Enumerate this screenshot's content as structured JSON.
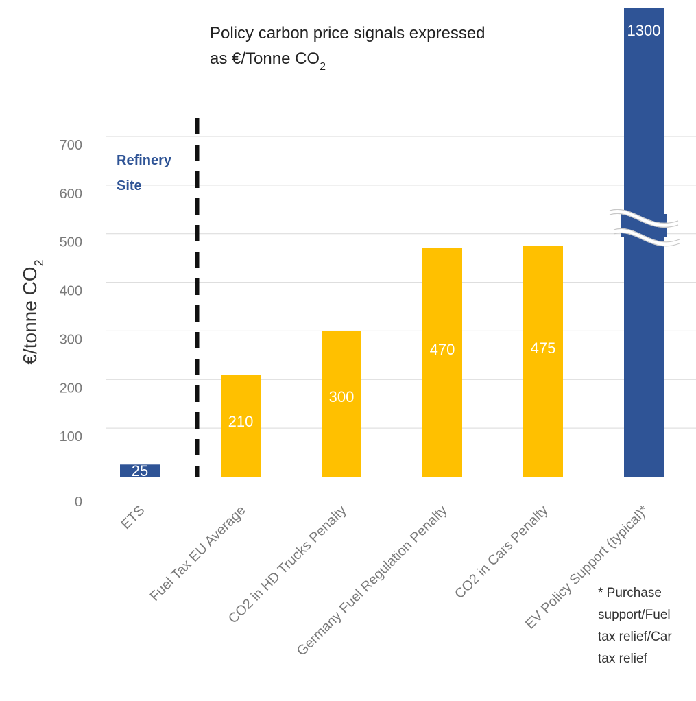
{
  "chart_data": {
    "type": "bar",
    "title_lines": [
      "Policy carbon price signals expressed",
      "as €/Tonne CO"
    ],
    "title_subscript": "2",
    "ylabel": "€/tonne CO",
    "ylabel_subscript": "2",
    "xlabel": "",
    "ylim": [
      0,
      700
    ],
    "yticks": [
      0,
      100,
      200,
      300,
      400,
      500,
      600,
      700
    ],
    "grid": true,
    "categories": [
      "ETS",
      "Fuel Tax EU Average",
      "CO2 in HD Trucks Penalty",
      "Germany Fuel Regulation Penalty",
      "CO2 in Cars Penalty",
      "EV Policy Support (typical)*"
    ],
    "values": [
      25,
      210,
      300,
      470,
      475,
      1300
    ],
    "data_labels": [
      "25",
      "210",
      "300",
      "470",
      "475",
      "1300"
    ],
    "colors": [
      "#2f5496",
      "#ffc000",
      "#ffc000",
      "#ffc000",
      "#ffc000",
      "#2f5496"
    ],
    "axis_break": true,
    "divider_after_category": 0,
    "annotation": [
      "Refinery",
      "Site"
    ],
    "footnote_lines": [
      "* Purchase",
      "support/Fuel",
      "tax relief/Car",
      "tax relief"
    ]
  }
}
